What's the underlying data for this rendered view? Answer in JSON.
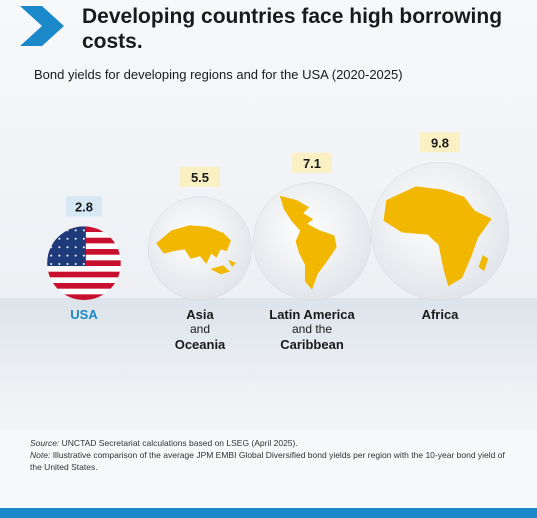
{
  "header": {
    "title": "Developing countries face high borrowing costs.",
    "subtitle": "Bond yields for developing regions and for the USA (2020-2025)"
  },
  "colors": {
    "accent_blue": "#1a88c9",
    "africa_gold": "#f2b700",
    "value_box": "#fbf0c4",
    "usa_box": "#d6e8f3"
  },
  "chart_data": {
    "type": "bubble",
    "title": "Developing countries face high borrowing costs.",
    "subtitle": "Bond yields for developing regions and for the USA (2020-2025)",
    "categories": [
      "USA",
      "Asia and Oceania",
      "Latin America and the Caribbean",
      "Africa"
    ],
    "values": [
      2.8,
      5.5,
      7.1,
      9.8
    ],
    "value_labels": [
      "2.8",
      "5.5",
      "7.1",
      "9.8"
    ],
    "label_lines": [
      [
        {
          "text": "USA",
          "style": "big"
        }
      ],
      [
        {
          "text": "Asia",
          "style": "big"
        },
        {
          "text": "and",
          "style": "small"
        },
        {
          "text": "Oceania",
          "style": "big"
        }
      ],
      [
        {
          "text": "Latin America",
          "style": "big"
        },
        {
          "text": "and the",
          "style": "small"
        },
        {
          "text": "Caribbean",
          "style": "big"
        }
      ],
      [
        {
          "text": "Africa",
          "style": "big"
        }
      ]
    ],
    "icons": [
      "usa-flag-icon",
      "asia-oceania-globe-icon",
      "latin-america-globe-icon",
      "africa-globe-icon"
    ]
  },
  "footer": {
    "source_label": "Source:",
    "source_text": " UNCTAD Secretariat calculations based on LSEG (April 2025).",
    "note_label": "Note:",
    "note_text": " Illustrative comparison of the average JPM EMBI Global Diversified bond yields per region with the 10-year bond yield of the United States."
  }
}
